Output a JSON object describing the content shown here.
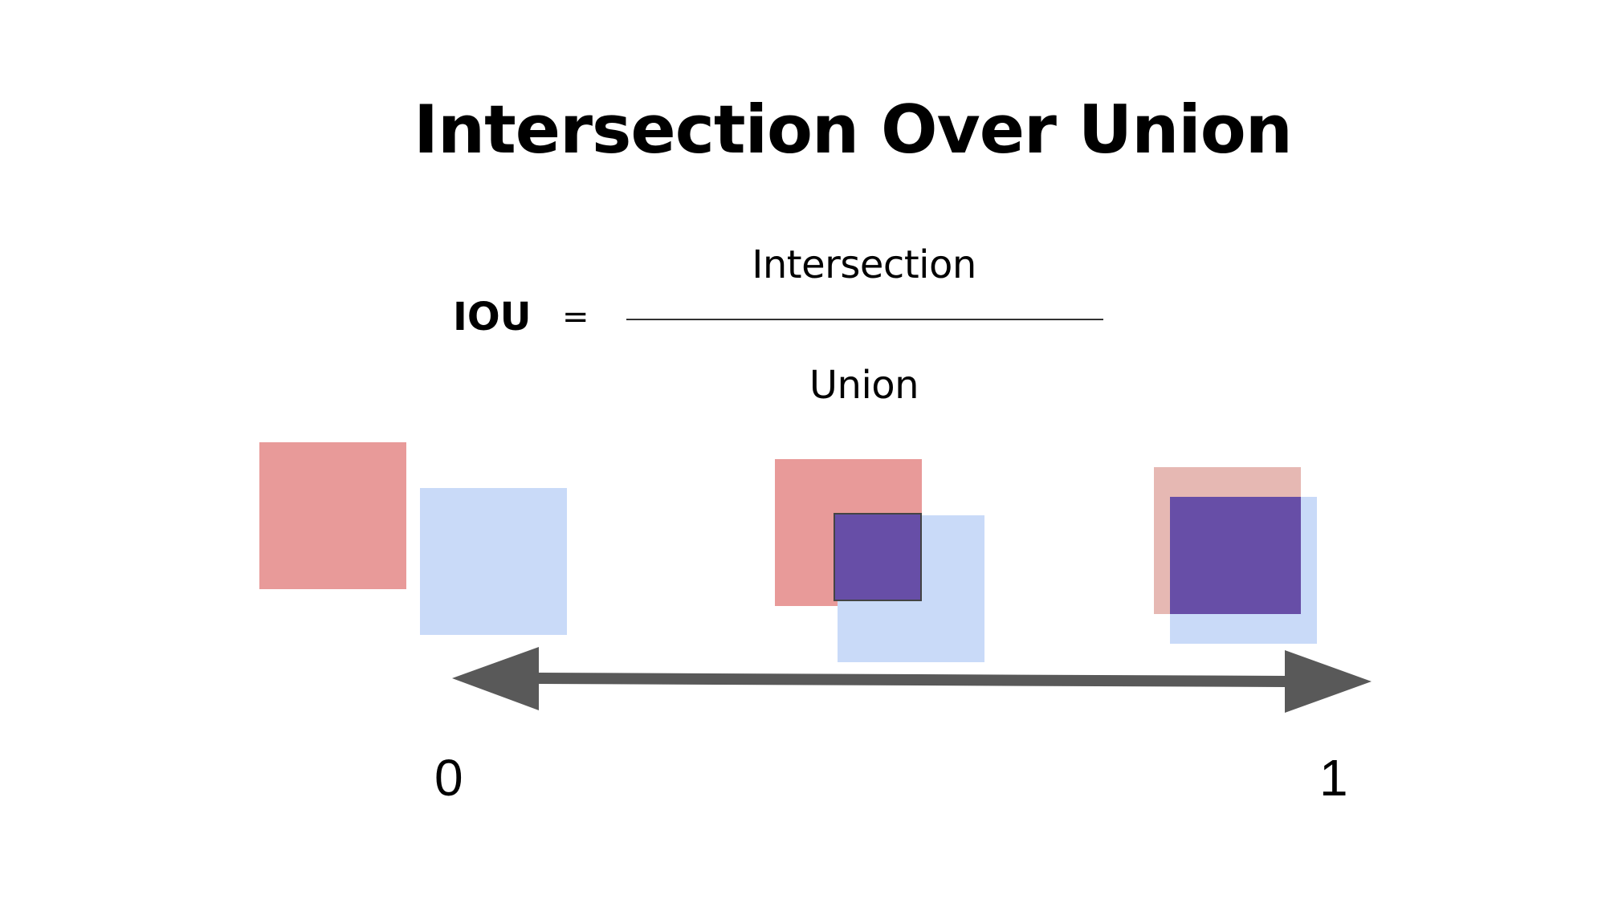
{
  "title": "Intersection Over Union",
  "formula": {
    "lhs": "IOU",
    "equals": "=",
    "numerator": "Intersection",
    "denominator": "Union"
  },
  "scale": {
    "min_label": "0",
    "max_label": "1"
  },
  "colors": {
    "box_a": "#e89a99",
    "box_a_faded": "#e6b8b3",
    "box_b": "#c9daf8",
    "intersection": "#674ea7",
    "arrow": "#595959"
  },
  "examples": [
    {
      "overlap": "none"
    },
    {
      "overlap": "partial"
    },
    {
      "overlap": "high"
    }
  ]
}
